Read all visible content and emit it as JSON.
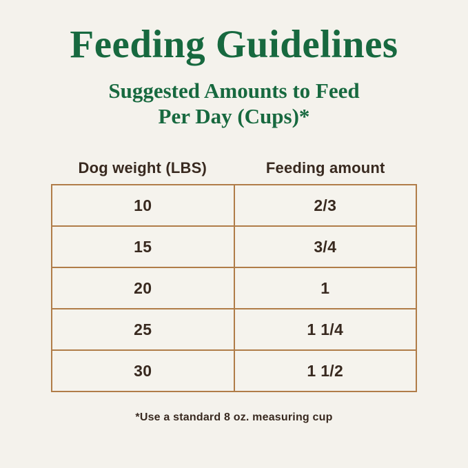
{
  "page": {
    "title": "Feeding Guidelines",
    "subtitle_line1": "Suggested Amounts to Feed",
    "subtitle_line2": "Per Day (Cups)*",
    "footnote": "*Use a standard 8 oz. measuring cup",
    "colors": {
      "background": "#f4f2ec",
      "heading_green": "#17693f",
      "text_dark": "#38291f",
      "table_border": "#b07c48"
    }
  },
  "table": {
    "col1_header": "Dog weight (LBS)",
    "col2_header": "Feeding amount",
    "rows": [
      {
        "weight": "10",
        "amount": "2/3"
      },
      {
        "weight": "15",
        "amount": "3/4"
      },
      {
        "weight": "20",
        "amount": "1"
      },
      {
        "weight": "25",
        "amount": "1 1/4"
      },
      {
        "weight": "30",
        "amount": "1 1/2"
      }
    ]
  },
  "chart_data": {
    "type": "table",
    "title": "Feeding Guidelines",
    "subtitle": "Suggested Amounts to Feed Per Day (Cups)*",
    "columns": [
      "Dog weight (LBS)",
      "Feeding amount"
    ],
    "rows": [
      [
        "10",
        "2/3"
      ],
      [
        "15",
        "3/4"
      ],
      [
        "20",
        "1"
      ],
      [
        "25",
        "1 1/4"
      ],
      [
        "30",
        "1 1/2"
      ]
    ],
    "units": {
      "weight": "LBS",
      "amount": "cups per day"
    },
    "footnote": "*Use a standard 8 oz. measuring cup"
  }
}
